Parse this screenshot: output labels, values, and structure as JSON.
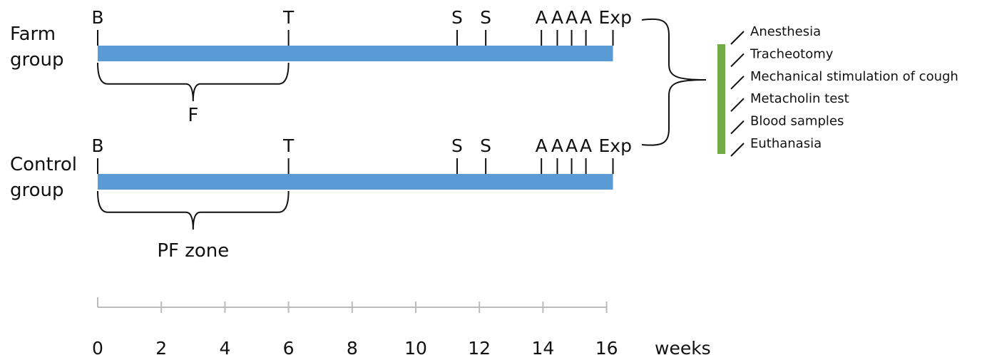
{
  "groups": [
    {
      "line1": "Farm",
      "line2": "group",
      "brace_label": "F"
    },
    {
      "line1": "Control",
      "line2": "group",
      "brace_label": "PF zone"
    }
  ],
  "events": [
    {
      "label": "B",
      "week": 0
    },
    {
      "label": "T",
      "week": 6
    },
    {
      "label": "S",
      "week": 11.3
    },
    {
      "label": "S",
      "week": 12.2
    },
    {
      "label": "A",
      "week": 13.95
    },
    {
      "label": "A",
      "week": 14.45
    },
    {
      "label": "A",
      "week": 14.9
    },
    {
      "label": "A",
      "week": 15.35
    },
    {
      "label": "Exp",
      "week": 16.2
    }
  ],
  "bar_end_week": 16.2,
  "brace_range_weeks": [
    0,
    6
  ],
  "axis": {
    "ticks": [
      0,
      2,
      4,
      6,
      8,
      10,
      12,
      14,
      16
    ],
    "unit": "weeks"
  },
  "procedures": [
    "Anesthesia",
    "Tracheotomy",
    "Mechanical stimulation of cough",
    "Metacholin test",
    "Blood samples",
    "Euthanasia"
  ],
  "colors": {
    "timeline": "#5b9bd5",
    "procedure_bar": "#70ad47",
    "axis": "#bbbbbb",
    "ink": "#111111"
  }
}
